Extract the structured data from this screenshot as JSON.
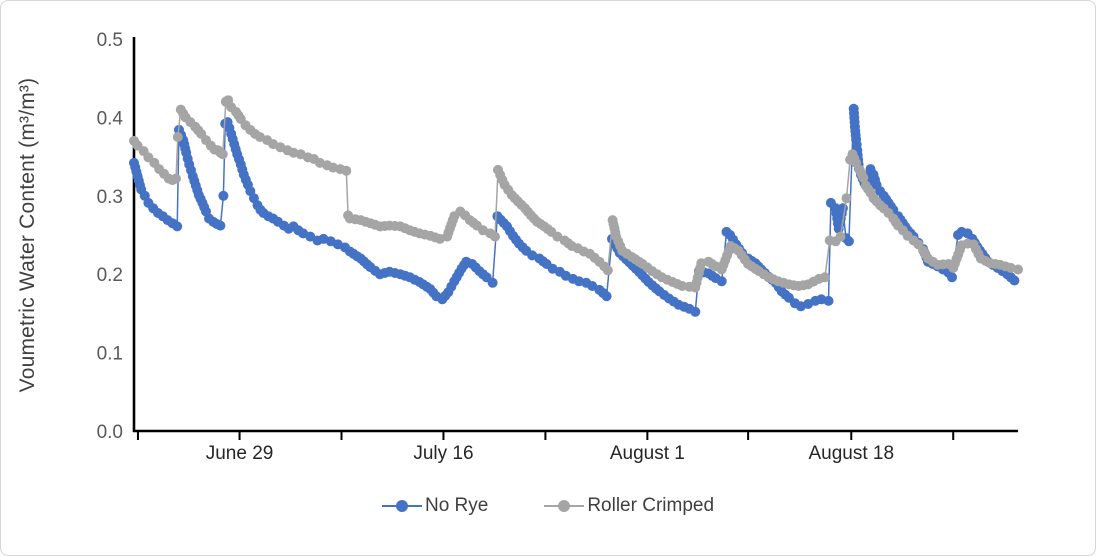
{
  "chart_data": {
    "type": "scatter",
    "title": "",
    "xlabel": "",
    "ylabel": "Voumetric Water Content (m³/m³)",
    "ylim": [
      0,
      0.5
    ],
    "yticks": [
      {
        "v": 0.0,
        "label": "0.0"
      },
      {
        "v": 0.1,
        "label": "0.1"
      },
      {
        "v": 0.2,
        "label": "0.2"
      },
      {
        "v": 0.3,
        "label": "0.3"
      },
      {
        "v": 0.4,
        "label": "0.4"
      },
      {
        "v": 0.5,
        "label": "0.5"
      }
    ],
    "x_unit": "days (0 = June 20)",
    "xlim": [
      0,
      73.7
    ],
    "xticks": [
      {
        "d": 0.33,
        "label": ""
      },
      {
        "d": 8.8,
        "label": "June 29"
      },
      {
        "d": 17.3,
        "label": ""
      },
      {
        "d": 25.8,
        "label": "July 16"
      },
      {
        "d": 34.3,
        "label": ""
      },
      {
        "d": 42.8,
        "label": "August 1"
      },
      {
        "d": 51.2,
        "label": ""
      },
      {
        "d": 59.8,
        "label": "August 18"
      },
      {
        "d": 68.3,
        "label": ""
      }
    ],
    "legend_position": "bottom",
    "grid": false,
    "axis_color": "#000000",
    "series": [
      {
        "name": "No Rye",
        "color": "#4472C4",
        "points": [
          [
            0,
            0.342
          ],
          [
            0.3,
            0.325
          ],
          [
            0.6,
            0.308
          ],
          [
            0.9,
            0.3
          ],
          [
            1.2,
            0.291
          ],
          [
            1.6,
            0.284
          ],
          [
            2.0,
            0.278
          ],
          [
            2.4,
            0.274
          ],
          [
            2.8,
            0.269
          ],
          [
            3.2,
            0.265
          ],
          [
            3.6,
            0.261
          ],
          [
            3.75,
            0.384
          ],
          [
            4.1,
            0.371
          ],
          [
            4.35,
            0.355
          ],
          [
            4.6,
            0.34
          ],
          [
            4.9,
            0.325
          ],
          [
            5.15,
            0.313
          ],
          [
            5.4,
            0.301
          ],
          [
            5.7,
            0.291
          ],
          [
            6.0,
            0.28
          ],
          [
            6.25,
            0.271
          ],
          [
            6.6,
            0.267
          ],
          [
            6.9,
            0.264
          ],
          [
            7.2,
            0.262
          ],
          [
            7.45,
            0.3
          ],
          [
            7.6,
            0.392
          ],
          [
            7.8,
            0.394
          ],
          [
            8.1,
            0.379
          ],
          [
            8.35,
            0.366
          ],
          [
            8.6,
            0.353
          ],
          [
            8.9,
            0.34
          ],
          [
            9.15,
            0.327
          ],
          [
            9.5,
            0.314
          ],
          [
            9.7,
            0.306
          ],
          [
            10.0,
            0.297
          ],
          [
            10.3,
            0.288
          ],
          [
            10.55,
            0.282
          ],
          [
            10.8,
            0.278
          ],
          [
            11.2,
            0.274
          ],
          [
            11.6,
            0.271
          ],
          [
            12.0,
            0.267
          ],
          [
            12.5,
            0.262
          ],
          [
            12.9,
            0.258
          ],
          [
            13.3,
            0.261
          ],
          [
            13.7,
            0.256
          ],
          [
            14.1,
            0.252
          ],
          [
            14.7,
            0.248
          ],
          [
            15.3,
            0.243
          ],
          [
            15.8,
            0.245
          ],
          [
            16.4,
            0.242
          ],
          [
            17.0,
            0.238
          ],
          [
            17.6,
            0.234
          ],
          [
            18.0,
            0.229
          ],
          [
            18.9,
            0.22
          ],
          [
            19.7,
            0.209
          ],
          [
            20.5,
            0.2
          ],
          [
            21.3,
            0.203
          ],
          [
            22.2,
            0.2
          ],
          [
            23.0,
            0.196
          ],
          [
            23.8,
            0.19
          ],
          [
            24.7,
            0.181
          ],
          [
            25.2,
            0.172
          ],
          [
            25.7,
            0.168
          ],
          [
            26.2,
            0.177
          ],
          [
            26.7,
            0.191
          ],
          [
            27.3,
            0.207
          ],
          [
            27.7,
            0.216
          ],
          [
            28.2,
            0.213
          ],
          [
            28.8,
            0.204
          ],
          [
            29.4,
            0.196
          ],
          [
            29.9,
            0.189
          ],
          [
            30.3,
            0.274
          ],
          [
            31.1,
            0.261
          ],
          [
            31.6,
            0.249
          ],
          [
            32.1,
            0.239
          ],
          [
            32.7,
            0.23
          ],
          [
            33.2,
            0.224
          ],
          [
            33.8,
            0.22
          ],
          [
            34.4,
            0.213
          ],
          [
            34.9,
            0.207
          ],
          [
            35.5,
            0.203
          ],
          [
            36.0,
            0.198
          ],
          [
            36.6,
            0.194
          ],
          [
            37.1,
            0.191
          ],
          [
            37.7,
            0.189
          ],
          [
            38.2,
            0.185
          ],
          [
            38.8,
            0.18
          ],
          [
            39.4,
            0.172
          ],
          [
            39.85,
            0.245
          ],
          [
            40.5,
            0.227
          ],
          [
            41.3,
            0.215
          ],
          [
            42.1,
            0.203
          ],
          [
            42.9,
            0.19
          ],
          [
            43.8,
            0.178
          ],
          [
            44.6,
            0.169
          ],
          [
            45.4,
            0.161
          ],
          [
            46.3,
            0.156
          ],
          [
            46.8,
            0.152
          ],
          [
            47.1,
            0.204
          ],
          [
            47.9,
            0.201
          ],
          [
            48.5,
            0.195
          ],
          [
            49.0,
            0.191
          ],
          [
            49.4,
            0.254
          ],
          [
            49.7,
            0.25
          ],
          [
            50.2,
            0.238
          ],
          [
            50.7,
            0.227
          ],
          [
            51.2,
            0.22
          ],
          [
            51.8,
            0.214
          ],
          [
            52.3,
            0.206
          ],
          [
            52.9,
            0.197
          ],
          [
            53.5,
            0.189
          ],
          [
            54.0,
            0.178
          ],
          [
            54.6,
            0.17
          ],
          [
            55.1,
            0.163
          ],
          [
            55.6,
            0.159
          ],
          [
            56.2,
            0.162
          ],
          [
            56.8,
            0.166
          ],
          [
            57.3,
            0.168
          ],
          [
            57.9,
            0.166
          ],
          [
            58.1,
            0.291
          ],
          [
            58.5,
            0.284
          ],
          [
            58.75,
            0.258
          ],
          [
            59.1,
            0.284
          ],
          [
            59.35,
            0.246
          ],
          [
            59.6,
            0.242
          ],
          [
            60.0,
            0.411
          ],
          [
            60.1,
            0.388
          ],
          [
            60.2,
            0.372
          ],
          [
            60.3,
            0.358
          ],
          [
            60.45,
            0.334
          ],
          [
            60.6,
            0.327
          ],
          [
            60.9,
            0.316
          ],
          [
            61.1,
            0.314
          ],
          [
            61.4,
            0.334
          ],
          [
            61.65,
            0.327
          ],
          [
            61.9,
            0.314
          ],
          [
            62.2,
            0.306
          ],
          [
            62.5,
            0.3
          ],
          [
            62.9,
            0.291
          ],
          [
            63.3,
            0.282
          ],
          [
            63.7,
            0.274
          ],
          [
            64.1,
            0.265
          ],
          [
            64.5,
            0.256
          ],
          [
            65.0,
            0.248
          ],
          [
            65.4,
            0.24
          ],
          [
            65.8,
            0.232
          ],
          [
            66.2,
            0.216
          ],
          [
            67.0,
            0.21
          ],
          [
            67.9,
            0.202
          ],
          [
            68.2,
            0.196
          ],
          [
            68.7,
            0.25
          ],
          [
            69.0,
            0.254
          ],
          [
            69.5,
            0.252
          ],
          [
            69.9,
            0.245
          ],
          [
            70.3,
            0.235
          ],
          [
            71.2,
            0.216
          ],
          [
            72.0,
            0.208
          ],
          [
            72.8,
            0.2
          ],
          [
            73.4,
            0.192
          ]
        ]
      },
      {
        "name": "Roller Crimped",
        "color": "#A5A5A5",
        "points": [
          [
            0,
            0.37
          ],
          [
            0.3,
            0.364
          ],
          [
            0.8,
            0.357
          ],
          [
            1.2,
            0.349
          ],
          [
            1.7,
            0.342
          ],
          [
            2.1,
            0.334
          ],
          [
            2.5,
            0.328
          ],
          [
            2.9,
            0.322
          ],
          [
            3.2,
            0.32
          ],
          [
            3.5,
            0.322
          ],
          [
            3.65,
            0.375
          ],
          [
            3.9,
            0.41
          ],
          [
            4.3,
            0.4
          ],
          [
            4.7,
            0.394
          ],
          [
            5.1,
            0.388
          ],
          [
            5.6,
            0.379
          ],
          [
            6.0,
            0.371
          ],
          [
            6.4,
            0.364
          ],
          [
            6.7,
            0.359
          ],
          [
            7.0,
            0.358
          ],
          [
            7.2,
            0.355
          ],
          [
            7.4,
            0.353
          ],
          [
            7.65,
            0.42
          ],
          [
            7.85,
            0.422
          ],
          [
            8.1,
            0.413
          ],
          [
            8.5,
            0.407
          ],
          [
            8.9,
            0.398
          ],
          [
            9.3,
            0.39
          ],
          [
            9.7,
            0.384
          ],
          [
            10.1,
            0.379
          ],
          [
            10.5,
            0.375
          ],
          [
            11.1,
            0.371
          ],
          [
            11.6,
            0.366
          ],
          [
            12.2,
            0.362
          ],
          [
            12.8,
            0.358
          ],
          [
            13.3,
            0.355
          ],
          [
            13.9,
            0.353
          ],
          [
            14.5,
            0.349
          ],
          [
            15.0,
            0.347
          ],
          [
            15.5,
            0.342
          ],
          [
            16.1,
            0.339
          ],
          [
            16.6,
            0.336
          ],
          [
            17.2,
            0.334
          ],
          [
            17.7,
            0.332
          ],
          [
            17.85,
            0.275
          ],
          [
            18.0,
            0.271
          ],
          [
            18.9,
            0.269
          ],
          [
            19.7,
            0.265
          ],
          [
            20.5,
            0.261
          ],
          [
            21.3,
            0.262
          ],
          [
            22.2,
            0.261
          ],
          [
            23.0,
            0.256
          ],
          [
            23.8,
            0.252
          ],
          [
            24.7,
            0.249
          ],
          [
            25.5,
            0.245
          ],
          [
            26.1,
            0.248
          ],
          [
            26.7,
            0.274
          ],
          [
            27.2,
            0.28
          ],
          [
            27.6,
            0.275
          ],
          [
            28.0,
            0.269
          ],
          [
            28.6,
            0.262
          ],
          [
            29.1,
            0.256
          ],
          [
            29.7,
            0.252
          ],
          [
            30.1,
            0.248
          ],
          [
            30.35,
            0.333
          ],
          [
            30.9,
            0.314
          ],
          [
            31.5,
            0.301
          ],
          [
            32.0,
            0.293
          ],
          [
            32.6,
            0.284
          ],
          [
            33.1,
            0.275
          ],
          [
            33.6,
            0.267
          ],
          [
            34.2,
            0.261
          ],
          [
            34.8,
            0.254
          ],
          [
            35.3,
            0.248
          ],
          [
            35.9,
            0.243
          ],
          [
            36.5,
            0.236
          ],
          [
            37.0,
            0.233
          ],
          [
            37.5,
            0.229
          ],
          [
            38.0,
            0.226
          ],
          [
            38.8,
            0.216
          ],
          [
            39.2,
            0.21
          ],
          [
            39.5,
            0.205
          ],
          [
            39.9,
            0.269
          ],
          [
            40.2,
            0.248
          ],
          [
            40.7,
            0.23
          ],
          [
            41.5,
            0.222
          ],
          [
            42.4,
            0.213
          ],
          [
            43.2,
            0.204
          ],
          [
            44.0,
            0.196
          ],
          [
            44.9,
            0.19
          ],
          [
            45.7,
            0.185
          ],
          [
            46.3,
            0.184
          ],
          [
            46.8,
            0.183
          ],
          [
            47.3,
            0.214
          ],
          [
            47.9,
            0.216
          ],
          [
            48.5,
            0.21
          ],
          [
            49.0,
            0.206
          ],
          [
            49.75,
            0.236
          ],
          [
            50.4,
            0.23
          ],
          [
            51.2,
            0.213
          ],
          [
            52.1,
            0.204
          ],
          [
            52.9,
            0.196
          ],
          [
            53.7,
            0.191
          ],
          [
            54.6,
            0.187
          ],
          [
            55.4,
            0.185
          ],
          [
            56.2,
            0.187
          ],
          [
            57.1,
            0.194
          ],
          [
            57.6,
            0.196
          ],
          [
            58.0,
            0.243
          ],
          [
            58.5,
            0.242
          ],
          [
            58.9,
            0.248
          ],
          [
            59.4,
            0.297
          ],
          [
            59.7,
            0.346
          ],
          [
            59.9,
            0.353
          ],
          [
            60.2,
            0.342
          ],
          [
            60.5,
            0.333
          ],
          [
            60.8,
            0.323
          ],
          [
            61.0,
            0.313
          ],
          [
            61.4,
            0.304
          ],
          [
            61.65,
            0.297
          ],
          [
            61.9,
            0.293
          ],
          [
            62.2,
            0.288
          ],
          [
            62.5,
            0.284
          ],
          [
            62.9,
            0.278
          ],
          [
            63.3,
            0.271
          ],
          [
            63.7,
            0.262
          ],
          [
            64.1,
            0.256
          ],
          [
            64.5,
            0.249
          ],
          [
            65.0,
            0.243
          ],
          [
            65.4,
            0.238
          ],
          [
            65.8,
            0.23
          ],
          [
            66.2,
            0.22
          ],
          [
            67.0,
            0.212
          ],
          [
            67.9,
            0.213
          ],
          [
            68.3,
            0.208
          ],
          [
            69.0,
            0.237
          ],
          [
            69.5,
            0.239
          ],
          [
            70.0,
            0.238
          ],
          [
            70.6,
            0.22
          ],
          [
            71.4,
            0.214
          ],
          [
            72.2,
            0.212
          ],
          [
            73.1,
            0.208
          ],
          [
            73.7,
            0.206
          ]
        ]
      }
    ]
  }
}
